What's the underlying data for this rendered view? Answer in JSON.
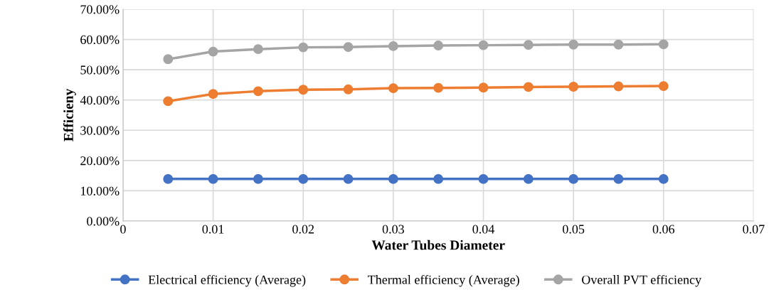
{
  "chart_data": {
    "type": "line",
    "xlabel": "Water Tubes Diameter",
    "ylabel": "Efficieny",
    "x": [
      0.005,
      0.01,
      0.015,
      0.02,
      0.025,
      0.03,
      0.035,
      0.04,
      0.045,
      0.05,
      0.055,
      0.06
    ],
    "series": [
      {
        "name": "Electrical efficiency (Average)",
        "color": "#4472c4",
        "values": [
          13.9,
          13.9,
          13.9,
          13.9,
          13.9,
          13.9,
          13.9,
          13.9,
          13.9,
          13.9,
          13.9,
          13.9
        ]
      },
      {
        "name": "Thermal efficiency (Average)",
        "color": "#ed7d31",
        "values": [
          39.6,
          42.0,
          42.9,
          43.4,
          43.5,
          43.9,
          44.0,
          44.1,
          44.3,
          44.4,
          44.5,
          44.6
        ]
      },
      {
        "name": "Overall PVT efficiency",
        "color": "#a5a5a5",
        "values": [
          53.5,
          56.0,
          56.8,
          57.4,
          57.5,
          57.8,
          58.0,
          58.1,
          58.2,
          58.3,
          58.3,
          58.4
        ]
      }
    ],
    "xlim": [
      0,
      0.07
    ],
    "xticks": [
      0,
      0.01,
      0.02,
      0.03,
      0.04,
      0.05,
      0.06,
      0.07
    ],
    "ylim": [
      0,
      70
    ],
    "yticks": [
      {
        "value": 0,
        "label": "0.00%"
      },
      {
        "value": 10,
        "label": "10.00%"
      },
      {
        "value": 20,
        "label": "20.00%"
      },
      {
        "value": 30,
        "label": "30.00%"
      },
      {
        "value": 40,
        "label": "40.00%"
      },
      {
        "value": 50,
        "label": "50.00%"
      },
      {
        "value": 60,
        "label": "60.00%"
      },
      {
        "value": 70,
        "label": "70.00%"
      }
    ],
    "grid": true,
    "legend": "bottom",
    "marker": "circle",
    "line_style": "solid"
  }
}
